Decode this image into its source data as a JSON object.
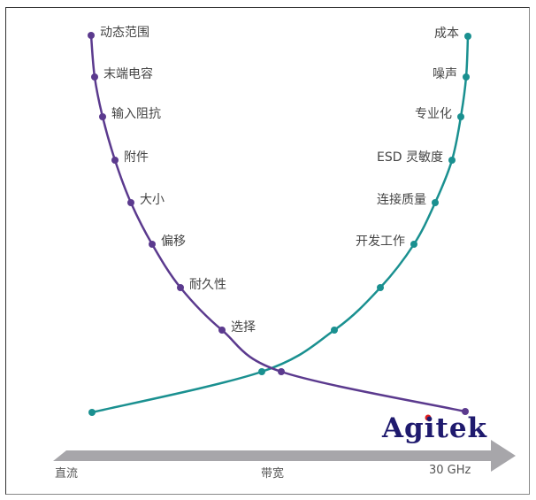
{
  "left_curve": {
    "color": "#5b3a8e",
    "labels": [
      "动态范围",
      "末端电容",
      "输入阻抗",
      "附件",
      "大小",
      "偏移",
      "耐久性",
      "选择"
    ]
  },
  "right_curve": {
    "color": "#1a9090",
    "labels": [
      "成本",
      "噪声",
      "专业化",
      "ESD 灵敏度",
      "连接质量",
      "开发工作"
    ]
  },
  "axis": {
    "color": "#a7a6aa",
    "left_label": "直流",
    "middle_label": "带宽",
    "right_label": "30 GHz"
  },
  "logo": {
    "text": "Agitek",
    "dot_color": "#e02020"
  }
}
